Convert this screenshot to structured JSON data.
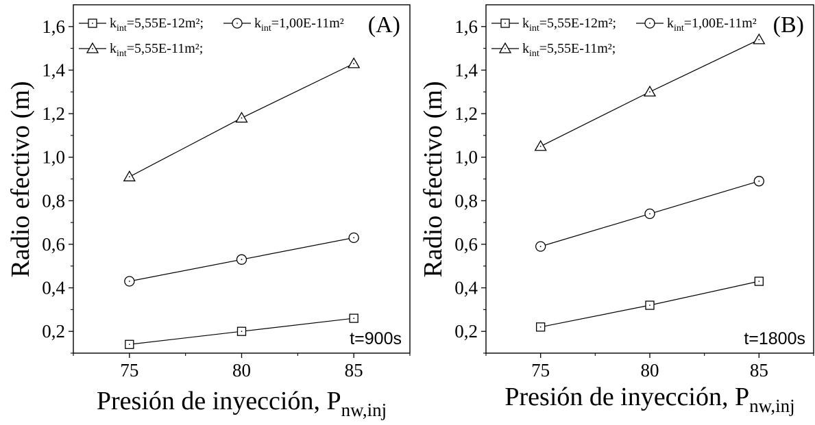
{
  "chart_data": [
    {
      "type": "line",
      "panel_label": "(A)",
      "annotation": "t=900s",
      "xlabel": "Presión de inyección, P",
      "xlabel_sub": "nw,inj",
      "ylabel": "Radio efectivo (m)",
      "x": [
        75,
        80,
        85
      ],
      "x_ticks": [
        "75",
        "80",
        "85"
      ],
      "xlim": [
        72.5,
        87.5
      ],
      "ylim": [
        0.1,
        1.7
      ],
      "y_ticks": [
        "0,2",
        "0,4",
        "0,6",
        "0,8",
        "1,0",
        "1,2",
        "1,4",
        "1,6"
      ],
      "y_tick_values": [
        0.2,
        0.4,
        0.6,
        0.8,
        1.0,
        1.2,
        1.4,
        1.6
      ],
      "legend_position": "top-left",
      "series": [
        {
          "name": "k_int=5,55E-12m²;",
          "k": "k",
          "sub": "int",
          "rest": "=5,55E-12m²;",
          "marker": "square",
          "values": [
            0.14,
            0.2,
            0.26
          ]
        },
        {
          "name": "k_int=1,00E-11m²",
          "k": "k",
          "sub": "int",
          "rest": "=1,00E-11m²",
          "marker": "circle",
          "values": [
            0.43,
            0.53,
            0.63
          ]
        },
        {
          "name": "k_int=5,55E-11m²;",
          "k": "k",
          "sub": "int",
          "rest": "=5,55E-11m²;",
          "marker": "triangle",
          "values": [
            0.91,
            1.18,
            1.43
          ]
        }
      ]
    },
    {
      "type": "line",
      "panel_label": "(B)",
      "annotation": "t=1800s",
      "xlabel": "Presión de inyección, P",
      "xlabel_sub": "nw,inj",
      "ylabel": "Radio efectivo (m)",
      "x": [
        75,
        80,
        85
      ],
      "x_ticks": [
        "75",
        "80",
        "85"
      ],
      "xlim": [
        72.5,
        87.5
      ],
      "ylim": [
        0.1,
        1.7
      ],
      "y_ticks": [
        "0,2",
        "0,4",
        "0,6",
        "0,8",
        "1,0",
        "1,2",
        "1,4",
        "1,6"
      ],
      "y_tick_values": [
        0.2,
        0.4,
        0.6,
        0.8,
        1.0,
        1.2,
        1.4,
        1.6
      ],
      "legend_position": "top-left",
      "series": [
        {
          "name": "k_int=5,55E-12m²;",
          "k": "k",
          "sub": "int",
          "rest": "=5,55E-12m²;",
          "marker": "square",
          "values": [
            0.22,
            0.32,
            0.43
          ]
        },
        {
          "name": "k_int=1,00E-11m²",
          "k": "k",
          "sub": "int",
          "rest": "=1,00E-11m²",
          "marker": "circle",
          "values": [
            0.59,
            0.74,
            0.89
          ]
        },
        {
          "name": "k_int=5,55E-11m²;",
          "k": "k",
          "sub": "int",
          "rest": "=5,55E-11m²;",
          "marker": "triangle",
          "values": [
            1.05,
            1.3,
            1.54
          ]
        }
      ]
    }
  ]
}
